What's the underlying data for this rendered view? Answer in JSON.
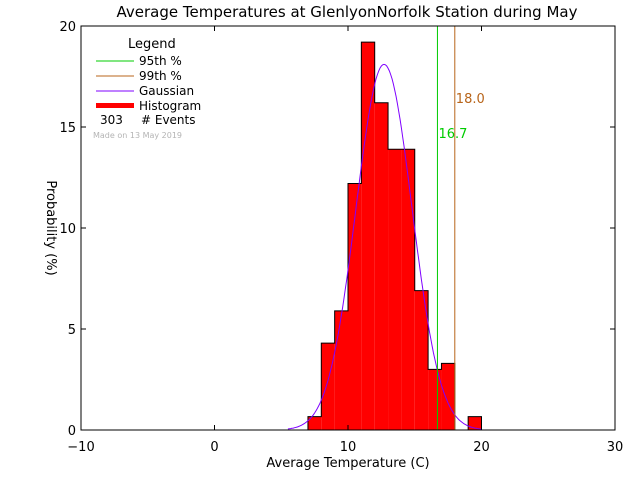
{
  "chart_data": {
    "type": "bar",
    "title": "Average Temperatures at GlenlyonNorfolk Station during May",
    "xlabel": "Average Temperature (C)",
    "ylabel": "Probability (%)",
    "xlim": [
      -10,
      30
    ],
    "ylim": [
      0,
      20
    ],
    "x_ticks": [
      "−10",
      "0",
      "10",
      "20",
      "30"
    ],
    "x_tick_values": [
      -10,
      0,
      10,
      20,
      30
    ],
    "y_ticks": [
      "0",
      "5",
      "10",
      "15",
      "20"
    ],
    "y_tick_values": [
      0,
      5,
      10,
      15,
      20
    ],
    "histogram": {
      "bin_width": 1.0,
      "bins": [
        {
          "x": 7,
          "value": 0.66
        },
        {
          "x": 8,
          "value": 4.3
        },
        {
          "x": 9,
          "value": 5.9
        },
        {
          "x": 10,
          "value": 12.2
        },
        {
          "x": 11,
          "value": 19.2
        },
        {
          "x": 12,
          "value": 16.2
        },
        {
          "x": 13,
          "value": 13.9
        },
        {
          "x": 14,
          "value": 13.9
        },
        {
          "x": 15,
          "value": 6.9
        },
        {
          "x": 16,
          "value": 3.0
        },
        {
          "x": 17,
          "value": 3.3
        },
        {
          "x": 19,
          "value": 0.66
        }
      ],
      "color": "#ff0000"
    },
    "gaussian": {
      "mean": 12.7,
      "sigma": 2.1,
      "peak": 18.1,
      "x_range": [
        5.5,
        20
      ],
      "color": "#7f00ff"
    },
    "percentiles": [
      {
        "name": "95th %",
        "value": 16.7,
        "label": "16.7",
        "color": "#00cc00"
      },
      {
        "name": "99th %",
        "value": 18.0,
        "label": "18.0",
        "color": "#b8651b"
      }
    ],
    "legend": {
      "title": "Legend",
      "placement": "top-left",
      "items": [
        {
          "label": "95th %",
          "color": "#00cc00",
          "kind": "line"
        },
        {
          "label": "99th %",
          "color": "#b8651b",
          "kind": "line"
        },
        {
          "label": "Gaussian",
          "color": "#7f00ff",
          "kind": "line"
        },
        {
          "label": "Histogram",
          "color": "#ff0000",
          "kind": "thick"
        }
      ],
      "events_count": "303",
      "events_label": "# Events",
      "made_note": "Made on 13 May 2019"
    }
  }
}
